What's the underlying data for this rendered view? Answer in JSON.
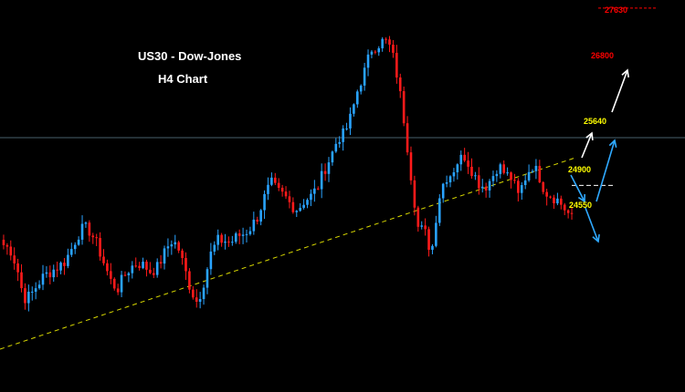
{
  "chart": {
    "title": "US30 - Dow-Jones",
    "subtitle": "H4 Chart"
  },
  "chart_data": {
    "type": "candlestick",
    "title": "US30 - Dow-Jones",
    "subtitle": "H4 Chart",
    "xlabel": "",
    "ylabel": "",
    "grid": false,
    "colors": {
      "background": "#000000",
      "bull": "#29a3ff",
      "bear": "#ff1a1a",
      "trendline": "#d8d800",
      "level_yellow": "#ffff00",
      "level_red": "#ff0000",
      "arrow_white": "#ffffff",
      "arrow_blue": "#2fa9ff",
      "current_price_line": "#5f7f8f"
    },
    "levels": [
      {
        "label": "27630",
        "value": 27630,
        "color": "#ff0000"
      },
      {
        "label": "26800",
        "value": 26800,
        "color": "#ff0000"
      },
      {
        "label": "25640",
        "value": 25640,
        "color": "#ffff00"
      },
      {
        "label": "24900",
        "value": 24900,
        "color": "#ffff00"
      },
      {
        "label": "24550",
        "value": 24550,
        "color": "#ffff00"
      }
    ],
    "ylim": [
      23300,
      27700
    ],
    "trendline_direction": "ascending",
    "scenarios": [
      {
        "name": "bullish",
        "color": "#ffffff",
        "path_values": [
          24940,
          25500,
          26800
        ]
      },
      {
        "name": "bearish",
        "color": "#2fa9ff",
        "path_values": [
          25000,
          24300,
          23900
        ]
      },
      {
        "name": "rebound",
        "color": "#2fa9ff",
        "path_values": [
          24300,
          25300
        ]
      }
    ],
    "price_path": [
      24950,
      24900,
      24700,
      24350,
      24380,
      24500,
      24600,
      24650,
      24700,
      24750,
      24880,
      25050,
      25150,
      25100,
      24950,
      24750,
      24550,
      24450,
      24600,
      24700,
      24750,
      24720,
      24650,
      24700,
      24850,
      25000,
      24950,
      24700,
      24450,
      24300,
      24550,
      24850,
      25000,
      25000,
      24980,
      25050,
      25080,
      25150,
      25270,
      25480,
      25650,
      25550,
      25500,
      25400,
      25350,
      25450,
      25500,
      25600,
      25800,
      25950,
      26150,
      26200,
      26400,
      26700,
      26900,
      27150,
      27200,
      27250,
      27150,
      26800,
      26300,
      25700,
      25150,
      25100,
      24850,
      25450,
      25700,
      25750,
      25900,
      25950,
      25800,
      25650,
      25600,
      25700,
      25850,
      25750,
      25700,
      25500,
      25700,
      25850,
      25750,
      25550,
      25500,
      25450,
      25350,
      25250
    ]
  }
}
